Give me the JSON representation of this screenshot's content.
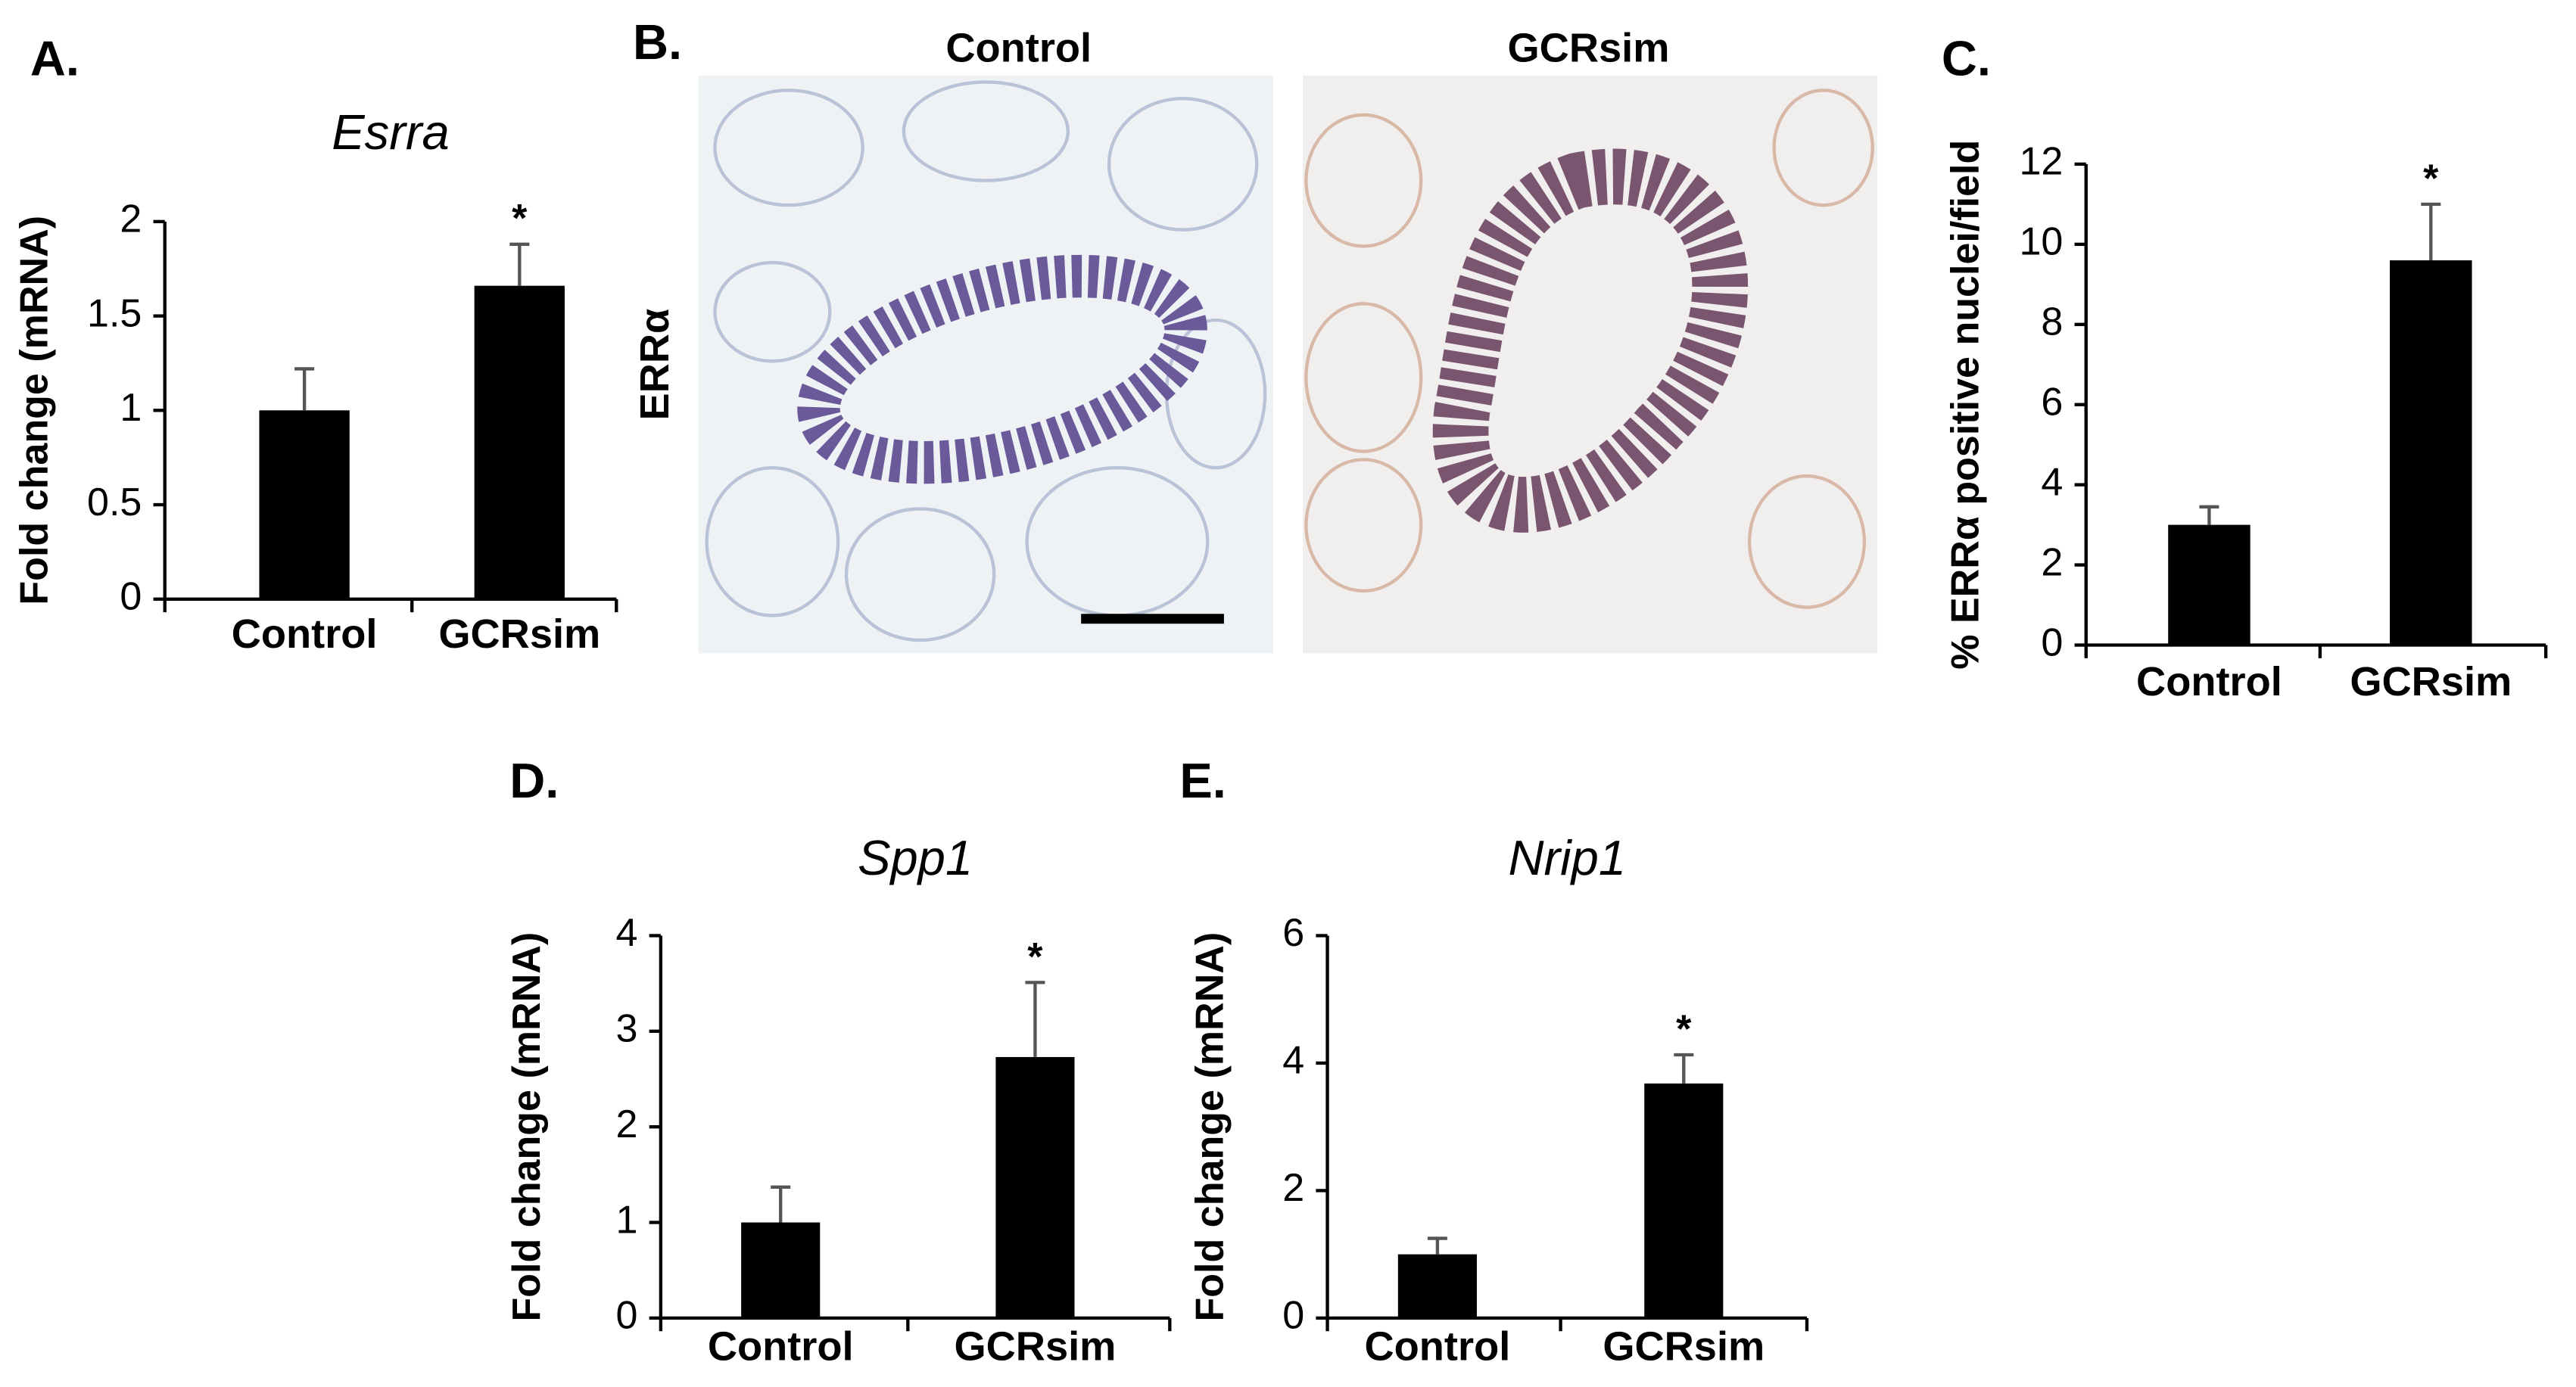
{
  "chart_data": [
    {
      "type": "bar",
      "panel": "A.",
      "title": "Esrra",
      "ylabel": "Fold change (mRNA)",
      "categories": [
        "Control",
        "GCRsim"
      ],
      "values": [
        1.0,
        1.66
      ],
      "errors": [
        0.22,
        0.22
      ],
      "significance": [
        null,
        "*"
      ],
      "color": "#000000",
      "ylim": [
        0,
        2
      ],
      "yticks": [
        0,
        0.5,
        1,
        1.5,
        2
      ],
      "grid": false
    },
    {
      "type": "bar",
      "panel": "C.",
      "ylabel": "% ERRα positive nuclei/field",
      "categories": [
        "Control",
        "GCRsim"
      ],
      "values": [
        3.0,
        9.6
      ],
      "errors": [
        0.45,
        1.4
      ],
      "significance": [
        null,
        "*"
      ],
      "color": "#000000",
      "ylim": [
        0,
        12
      ],
      "yticks": [
        0,
        2,
        4,
        6,
        8,
        10,
        12
      ],
      "grid": false
    },
    {
      "type": "bar",
      "panel": "D.",
      "title": "Spp1",
      "ylabel": "Fold change (mRNA)",
      "categories": [
        "Control",
        "GCRsim"
      ],
      "values": [
        1.0,
        2.73
      ],
      "errors": [
        0.37,
        0.78
      ],
      "significance": [
        null,
        "*"
      ],
      "color": "#000000",
      "ylim": [
        0,
        4
      ],
      "yticks": [
        0,
        1,
        2,
        3,
        4
      ],
      "grid": false
    },
    {
      "type": "bar",
      "panel": "E.",
      "title": "Nrip1",
      "ylabel": "Fold change (mRNA)",
      "categories": [
        "Control",
        "GCRsim"
      ],
      "values": [
        1.0,
        3.68
      ],
      "errors": [
        0.25,
        0.45
      ],
      "significance": [
        null,
        "*"
      ],
      "color": "#000000",
      "ylim": [
        0,
        6
      ],
      "yticks": [
        0,
        2,
        4,
        6
      ],
      "grid": false
    }
  ],
  "panel_b": {
    "panel": "B.",
    "columns": [
      "Control",
      "GCRsim"
    ],
    "row_label": "ERRα"
  }
}
